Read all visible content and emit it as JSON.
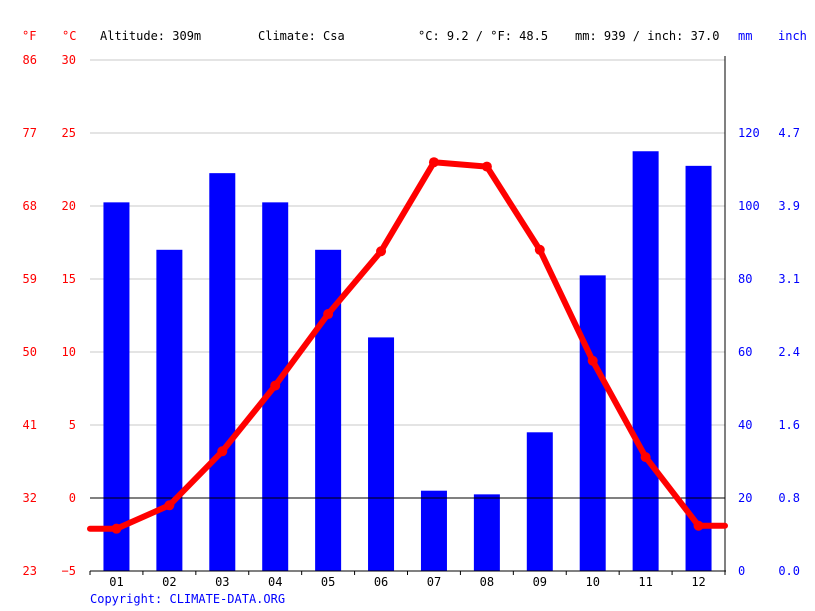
{
  "header": {
    "fahrenheit_unit": "°F",
    "celsius_unit": "°C",
    "altitude": "Altitude: 309m",
    "climate": "Climate: Csa",
    "avg_temp": "°C: 9.2 / °F: 48.5",
    "avg_precip": "mm: 939 / inch: 37.0",
    "mm_unit": "mm",
    "inch_unit": "inch"
  },
  "copyright": "Copyright: CLIMATE-DATA.ORG",
  "colors": {
    "temperature": "#ff0000",
    "precipitation": "#0000ff",
    "grid": "#c8c8c8",
    "axis": "#000000"
  },
  "chart_data": {
    "type": "bar",
    "categories": [
      "01",
      "02",
      "03",
      "04",
      "05",
      "06",
      "07",
      "08",
      "09",
      "10",
      "11",
      "12"
    ],
    "series": [
      {
        "axis": "right",
        "type": "bar",
        "values": [
          101,
          88,
          109,
          101,
          88,
          64,
          22,
          21,
          38,
          81,
          115,
          111
        ]
      },
      {
        "axis": "left",
        "type": "line",
        "values": [
          -2.1,
          -0.5,
          3.2,
          7.7,
          12.6,
          16.9,
          23.0,
          22.7,
          17.0,
          9.4,
          2.8,
          -1.9
        ]
      }
    ],
    "y_left_celsius_ticks": [
      "30",
      "25",
      "20",
      "15",
      "10",
      "5",
      "0",
      "−5"
    ],
    "y_left_fahrenheit_ticks": [
      "86",
      "77",
      "68",
      "59",
      "50",
      "41",
      "32",
      "23"
    ],
    "y_right_mm_ticks": [
      "120",
      "100",
      "80",
      "60",
      "40",
      "20",
      "0"
    ],
    "y_right_inch_ticks": [
      "4.7",
      "3.9",
      "3.1",
      "2.4",
      "1.6",
      "0.8",
      "0.0"
    ],
    "ylim_celsius": [
      -5,
      30
    ],
    "ylim_mm": [
      0,
      140
    ],
    "grid": true
  }
}
